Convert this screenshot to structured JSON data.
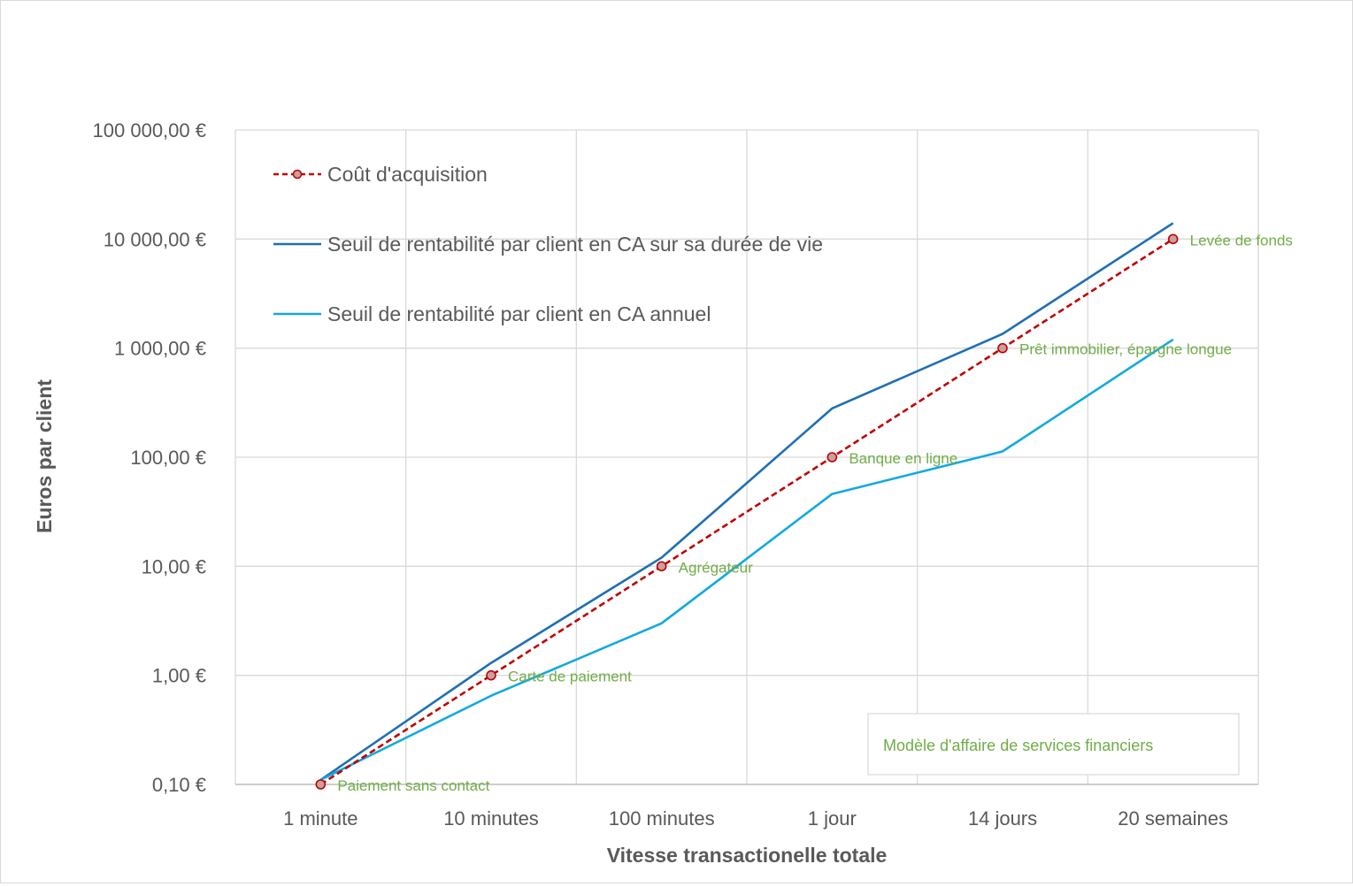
{
  "chart_data": {
    "type": "line",
    "title": "",
    "xlabel": "Vitesse transactionelle totale",
    "ylabel": "Euros par client",
    "yscale": "log",
    "ylim": [
      0.1,
      100000
    ],
    "grid": true,
    "legend_position": "top-left",
    "categories": [
      "1 minute",
      "10 minutes",
      "100 minutes",
      "1 jour",
      "14 jours",
      "20 semaines"
    ],
    "y_ticks": [
      {
        "value": 0.1,
        "label": "0,10 €"
      },
      {
        "value": 1,
        "label": "1,00 €"
      },
      {
        "value": 10,
        "label": "10,00 €"
      },
      {
        "value": 100,
        "label": "100,00 €"
      },
      {
        "value": 1000,
        "label": "1 000,00 €"
      },
      {
        "value": 10000,
        "label": "10 000,00 €"
      },
      {
        "value": 100000,
        "label": "100 000,00 €"
      }
    ],
    "series": [
      {
        "name": "Coût d'acquisition",
        "color": "#c00000",
        "style": "dashed-markers",
        "values": [
          0.1,
          1,
          10,
          100,
          1000,
          10000
        ],
        "point_labels": [
          "Paiement sans contact",
          "Carte de paiement",
          "Agrégateur",
          "Banque en ligne",
          "Prêt immobilier, épargne longue",
          "Levée de fonds"
        ]
      },
      {
        "name": "Seuil de rentabilité par client en CA sur sa durée de vie",
        "color": "#1f6fb4",
        "style": "solid",
        "values": [
          0.11,
          1.3,
          12,
          280,
          1350,
          14000
        ]
      },
      {
        "name": "Seuil de rentabilité par client en CA annuel",
        "color": "#12a9e0",
        "style": "solid",
        "values": [
          0.11,
          0.65,
          3,
          46,
          113,
          1200
        ]
      }
    ],
    "annotation_box": "Modèle d'affaire de services financiers"
  }
}
